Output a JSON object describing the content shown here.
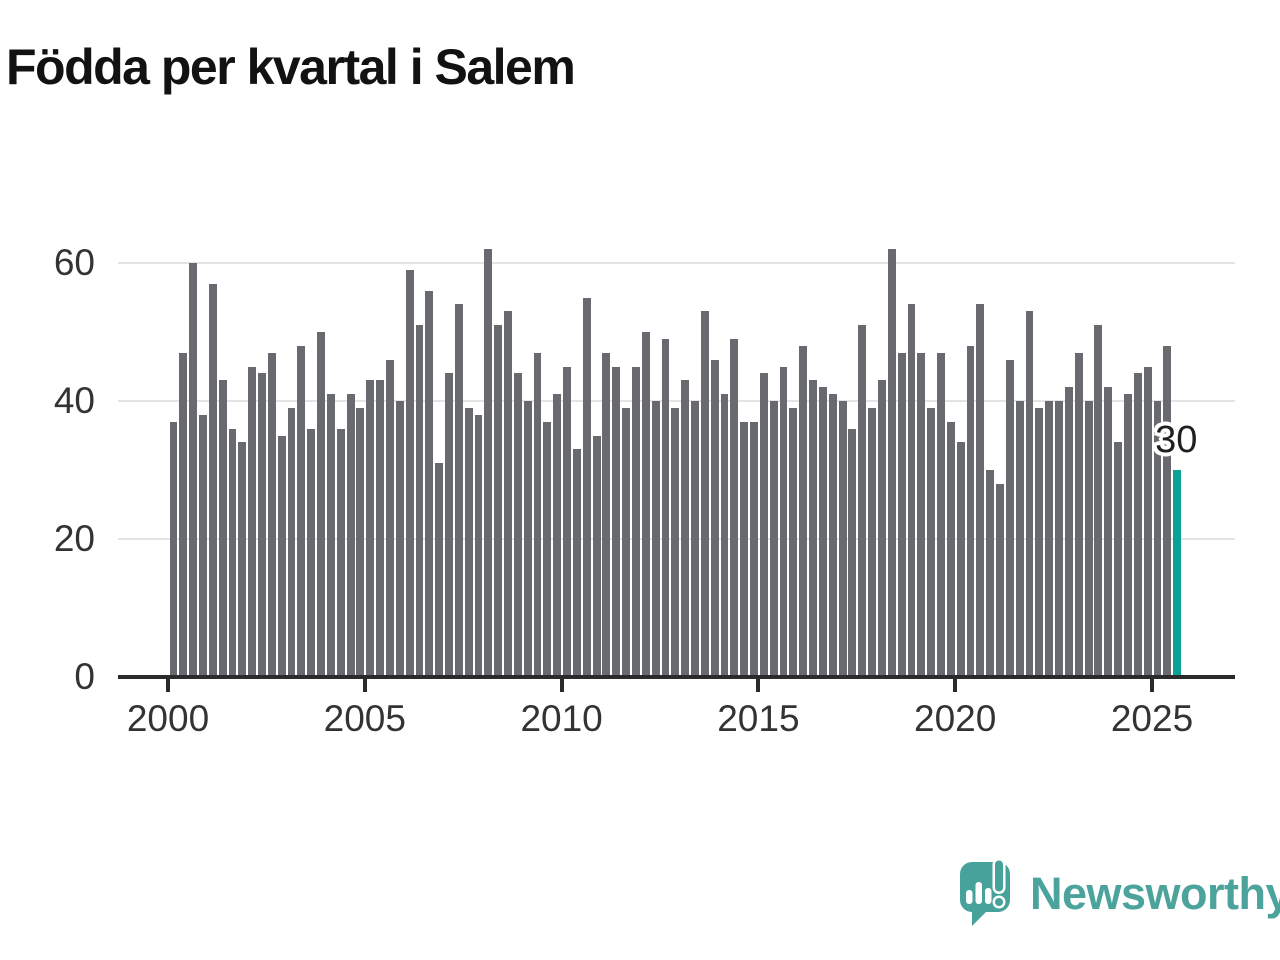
{
  "title": "Födda per kvartal i Salem",
  "chart_data": {
    "type": "bar",
    "title": "Födda per kvartal i Salem",
    "x_start": "2000 Q1",
    "x_end": "2025 Q3",
    "frequency": "quarterly",
    "values": [
      37,
      47,
      60,
      38,
      57,
      43,
      36,
      34,
      45,
      44,
      47,
      35,
      39,
      48,
      36,
      50,
      41,
      36,
      41,
      39,
      43,
      43,
      46,
      40,
      59,
      51,
      56,
      31,
      44,
      54,
      39,
      38,
      62,
      51,
      53,
      44,
      40,
      47,
      37,
      41,
      45,
      33,
      55,
      35,
      47,
      45,
      39,
      45,
      50,
      40,
      49,
      39,
      43,
      40,
      53,
      46,
      41,
      49,
      37,
      37,
      44,
      40,
      45,
      39,
      48,
      43,
      42,
      41,
      40,
      36,
      51,
      39,
      43,
      62,
      47,
      54,
      47,
      39,
      47,
      37,
      34,
      48,
      54,
      30,
      28,
      46,
      40,
      53,
      39,
      40,
      40,
      42,
      47,
      40,
      51,
      42,
      34,
      41,
      44,
      45,
      40,
      48,
      30
    ],
    "bar_color": "#696970",
    "highlight": {
      "index": 102,
      "value": 30,
      "label": "30",
      "color": "#0aa296"
    },
    "yticks": [
      0,
      20,
      40,
      60
    ],
    "xticks": [
      "2000",
      "2005",
      "2010",
      "2015",
      "2020",
      "2025"
    ],
    "ylim": [
      0,
      65
    ],
    "grid": "horizontal",
    "legend": "none"
  },
  "footer": {
    "brand": "Newsworthy",
    "logo_icon": "speech-bubble-bar-chart-exclamation-icon",
    "brand_color": "#4ba39c"
  }
}
